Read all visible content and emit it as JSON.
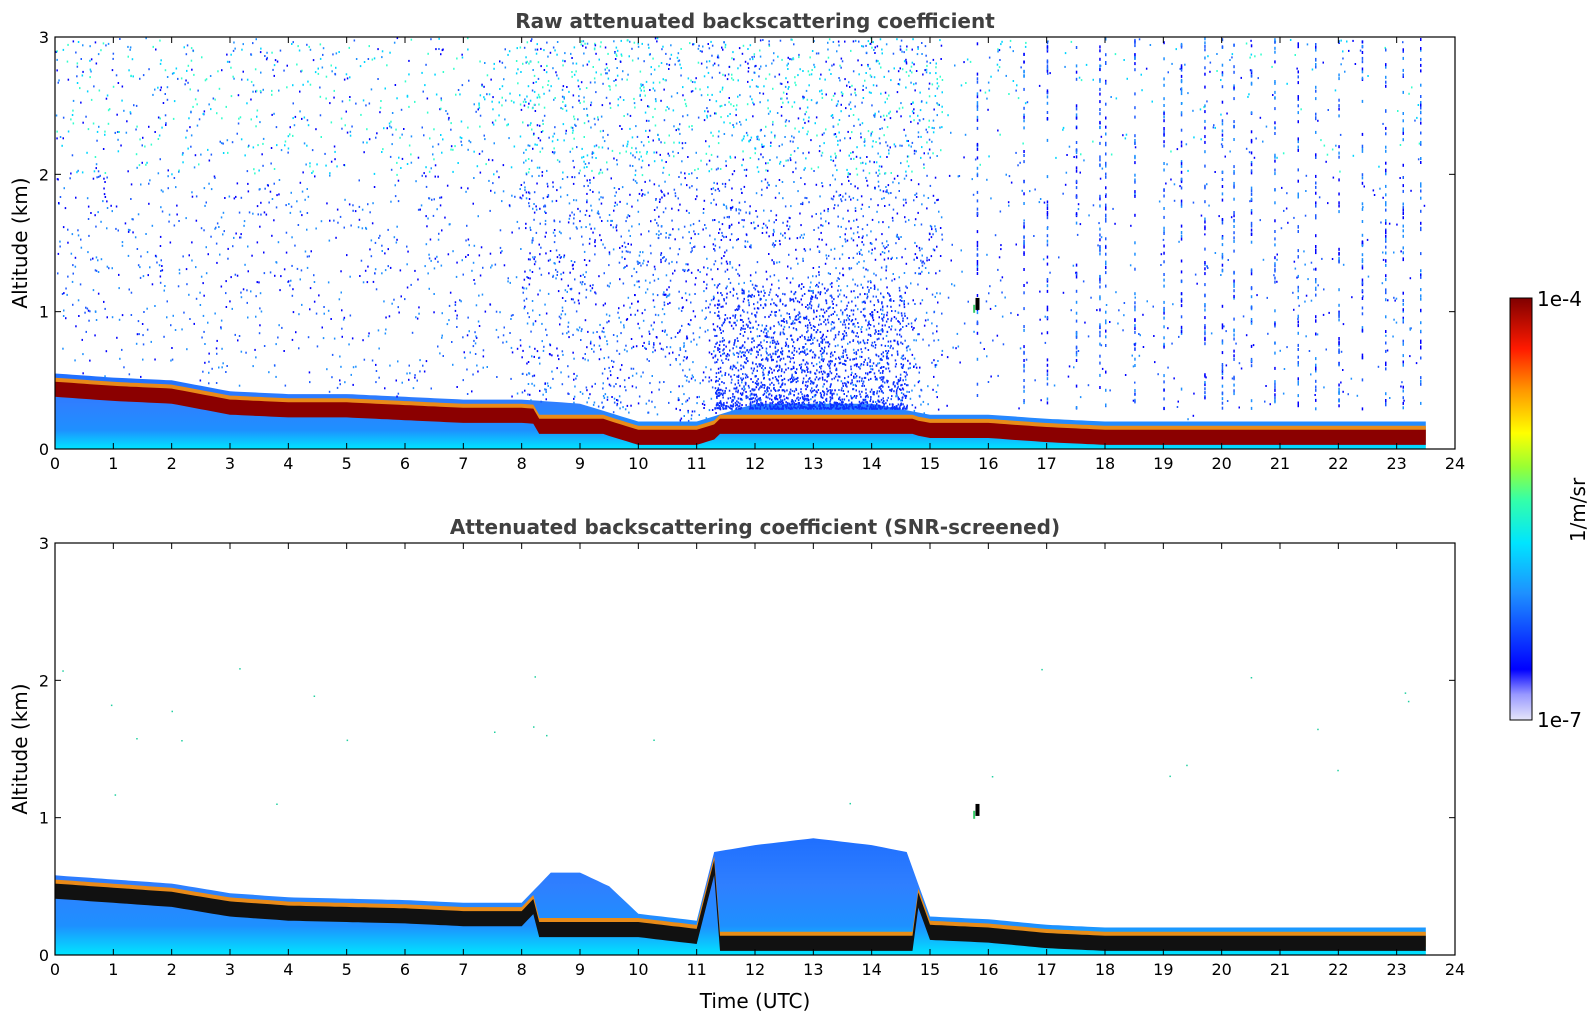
{
  "chart_data": [
    {
      "type": "heatmap",
      "title": "Raw attenuated backscattering coefficient",
      "xlabel": "",
      "ylabel": "Altitude (km)",
      "xlim": [
        0,
        24
      ],
      "ylim": [
        0,
        3
      ],
      "x_ticks": [
        "0",
        "1",
        "2",
        "3",
        "4",
        "5",
        "6",
        "7",
        "8",
        "9",
        "10",
        "11",
        "12",
        "13",
        "14",
        "15",
        "16",
        "17",
        "18",
        "19",
        "20",
        "21",
        "22",
        "23",
        "24"
      ],
      "y_ticks": [
        "0",
        "1",
        "2",
        "3"
      ],
      "boundary_layer_top_km": {
        "time_utc": [
          0,
          1,
          2,
          3,
          4,
          5,
          6,
          7,
          8,
          9,
          10,
          11,
          12,
          13,
          14,
          15,
          16,
          17,
          18,
          19,
          20,
          21,
          22,
          23,
          23.5
        ],
        "altitude": [
          0.55,
          0.52,
          0.5,
          0.42,
          0.4,
          0.4,
          0.38,
          0.36,
          0.36,
          0.33,
          0.2,
          0.2,
          0.33,
          0.33,
          0.33,
          0.25,
          0.25,
          0.22,
          0.2,
          0.2,
          0.2,
          0.2,
          0.2,
          0.2,
          0.2
        ]
      },
      "noise_level": "high"
    },
    {
      "type": "heatmap",
      "title": "Attenuated backscattering coefficient (SNR-screened)",
      "xlabel": "Time (UTC)",
      "ylabel": "Altitude (km)",
      "xlim": [
        0,
        24
      ],
      "ylim": [
        0,
        3
      ],
      "x_ticks": [
        "0",
        "1",
        "2",
        "3",
        "4",
        "5",
        "6",
        "7",
        "8",
        "9",
        "10",
        "11",
        "12",
        "13",
        "14",
        "15",
        "16",
        "17",
        "18",
        "19",
        "20",
        "21",
        "22",
        "23",
        "24"
      ],
      "y_ticks": [
        "0",
        "1",
        "2",
        "3"
      ],
      "boundary_layer_top_km": {
        "time_utc": [
          0,
          1,
          2,
          3,
          4,
          5,
          6,
          7,
          8,
          8.5,
          9,
          9.5,
          10,
          11,
          11.3,
          12,
          13,
          14,
          14.6,
          15,
          16,
          17,
          18,
          19,
          20,
          21,
          22,
          23,
          23.5
        ],
        "altitude": [
          0.58,
          0.55,
          0.52,
          0.45,
          0.42,
          0.41,
          0.4,
          0.38,
          0.38,
          0.6,
          0.6,
          0.5,
          0.3,
          0.25,
          0.75,
          0.8,
          0.85,
          0.8,
          0.75,
          0.28,
          0.26,
          0.22,
          0.2,
          0.2,
          0.2,
          0.2,
          0.2,
          0.2,
          0.2
        ]
      },
      "noise_level": "low"
    }
  ],
  "colorbar": {
    "label": "1/m/sr",
    "max_label": "1e-4",
    "min_label": "1e-7",
    "colors": [
      "#e6e6fa",
      "#0000ff",
      "#1e90ff",
      "#00ffff",
      "#7fff7f",
      "#ffff00",
      "#ff7f00",
      "#ff0000",
      "#800000"
    ]
  }
}
